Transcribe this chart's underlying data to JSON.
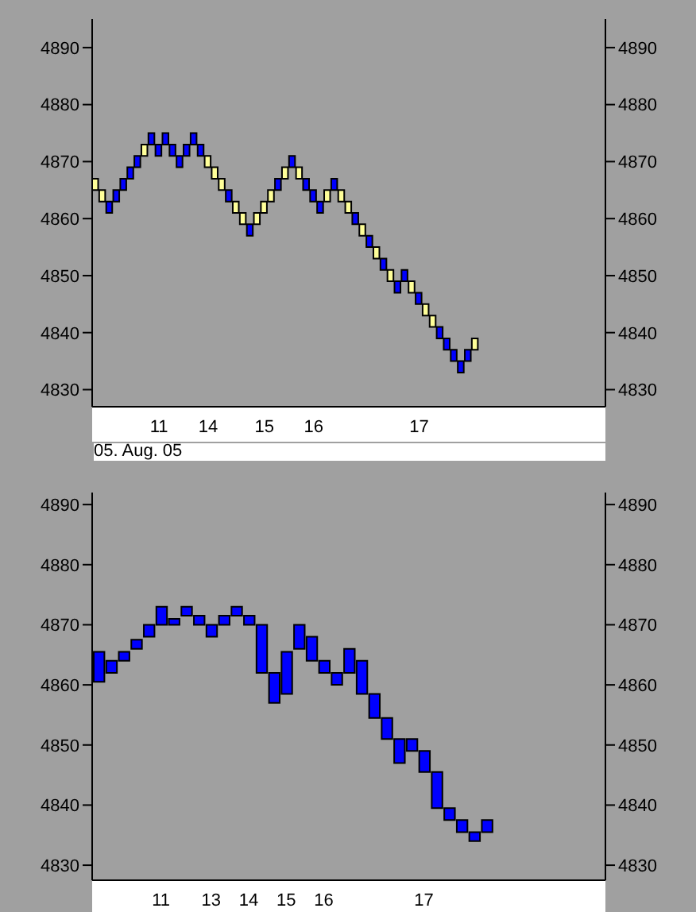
{
  "chart_data": [
    {
      "type": "bar",
      "categories": [
        null,
        null,
        null,
        null,
        null,
        null,
        null,
        null,
        null,
        "11",
        null,
        null,
        null,
        null,
        null,
        null,
        "14",
        null,
        null,
        null,
        null,
        null,
        null,
        null,
        "15",
        null,
        null,
        null,
        null,
        null,
        null,
        "16",
        null,
        null,
        null,
        null,
        null,
        null,
        null,
        null,
        null,
        null,
        null,
        null,
        null,
        null,
        "17",
        null,
        null,
        null,
        null,
        null,
        null,
        null,
        null,
        null,
        null,
        null,
        null,
        null,
        null,
        null,
        null,
        null,
        null,
        null,
        null,
        null,
        null,
        null,
        null,
        null,
        null
      ],
      "values": [
        2,
        2,
        2,
        2,
        2,
        2,
        2,
        2,
        2,
        2,
        2,
        2,
        2,
        2,
        2,
        2,
        2,
        2,
        2,
        2,
        2,
        2,
        2,
        2,
        2,
        2,
        2,
        2,
        2,
        2,
        2,
        2,
        2,
        2,
        2,
        2,
        2,
        2,
        2,
        2,
        2,
        2,
        2,
        2,
        2,
        2,
        2,
        2,
        2,
        2,
        2,
        2,
        2,
        2,
        2,
        null,
        null,
        null,
        null,
        null,
        null,
        null,
        null,
        null,
        null,
        null,
        null,
        null,
        null,
        null,
        null,
        null,
        null
      ],
      "base": [
        4865,
        4863,
        4861,
        4863,
        4865,
        4867,
        4869,
        4871,
        4873,
        4871,
        4873,
        4871,
        4869,
        4871,
        4873,
        4871,
        4869,
        4867,
        4865,
        4863,
        4861,
        4859,
        4857,
        4859,
        4861,
        4863,
        4865,
        4867,
        4869,
        4867,
        4865,
        4863,
        4861,
        4863,
        4865,
        4863,
        4861,
        4859,
        4857,
        4855,
        4853,
        4851,
        4849,
        4847,
        4849,
        4847,
        4845,
        4843,
        4841,
        4839,
        4837,
        4835,
        4833,
        4835,
        4837,
        null,
        null,
        null,
        null,
        null,
        null,
        null,
        null,
        null,
        null,
        null,
        null,
        null,
        null,
        null,
        null,
        null,
        null
      ],
      "colors": [
        "#ffff99",
        "#ffff99",
        "#0000ff",
        "#0000ff",
        "#0000ff",
        "#0000ff",
        "#0000ff",
        "#ffff99",
        "#0000ff",
        "#0000ff",
        "#0000ff",
        "#0000ff",
        "#0000ff",
        "#0000ff",
        "#0000ff",
        "#0000ff",
        "#ffff99",
        "#ffff99",
        "#ffff99",
        "#0000ff",
        "#ffff99",
        "#ffff99",
        "#0000ff",
        "#ffff99",
        "#ffff99",
        "#ffff99",
        "#0000ff",
        "#ffff99",
        "#0000ff",
        "#ffff99",
        "#0000ff",
        "#0000ff",
        "#0000ff",
        "#ffff99",
        "#0000ff",
        "#ffff99",
        "#ffff99",
        "#0000ff",
        "#ffff99",
        "#0000ff",
        "#ffff99",
        "#0000ff",
        "#ffff99",
        "#0000ff",
        "#0000ff",
        "#ffff99",
        "#0000ff",
        "#ffff99",
        "#ffff99",
        "#0000ff",
        "#0000ff",
        "#0000ff",
        "#0000ff",
        "#0000ff",
        "#ffff99",
        null,
        null,
        null,
        null,
        null,
        null,
        null,
        null,
        null,
        null,
        null,
        null,
        null,
        null,
        null,
        null,
        null,
        null
      ],
      "ylim": [
        4827,
        4895
      ],
      "yticks": [
        4830,
        4840,
        4850,
        4860,
        4870,
        4880,
        4890
      ],
      "y2lim": [
        4827,
        4895
      ],
      "y2ticks": [
        4830,
        4840,
        4850,
        4860,
        4870,
        4880,
        4890
      ],
      "annotations": [
        "05. Aug. 05"
      ]
    },
    {
      "type": "bar",
      "categories": [
        null,
        null,
        null,
        null,
        null,
        "11",
        null,
        null,
        null,
        "13",
        null,
        null,
        "14",
        null,
        null,
        "15",
        null,
        null,
        "16",
        null,
        null,
        null,
        null,
        null,
        null,
        null,
        "17",
        null,
        null,
        null,
        null,
        null,
        null,
        null,
        null,
        null,
        null,
        null,
        null,
        null,
        null
      ],
      "values": [
        5,
        2,
        1.5,
        1.5,
        2,
        3,
        1,
        1.5,
        1.5,
        2,
        1.5,
        1.5,
        1.5,
        8,
        5,
        7,
        4,
        4,
        2,
        2,
        4,
        5.5,
        4,
        3.5,
        4,
        2,
        3.5,
        6,
        2,
        2,
        1.5,
        2,
        null,
        null,
        null,
        null,
        null,
        null,
        null,
        null,
        null
      ],
      "base": [
        4860.5,
        4862,
        4864,
        4866,
        4868,
        4870,
        4870,
        4871.5,
        4870,
        4868,
        4870,
        4871.5,
        4870,
        4862,
        4857,
        4858.5,
        4866,
        4864,
        4862,
        4860,
        4862,
        4858.5,
        4854.5,
        4851,
        4847,
        4849,
        4845.5,
        4839.5,
        4837.5,
        4835.5,
        4834,
        4835.5,
        null,
        null,
        null,
        null,
        null,
        null,
        null,
        null,
        null
      ],
      "color": "#0000ff",
      "ylim": [
        4827.5,
        4892
      ],
      "yticks": [
        4830,
        4840,
        4850,
        4860,
        4870,
        4880,
        4890
      ],
      "y2lim": [
        4827.5,
        4892
      ],
      "y2ticks": [
        4830,
        4840,
        4850,
        4860,
        4870,
        4880,
        4890
      ]
    }
  ]
}
